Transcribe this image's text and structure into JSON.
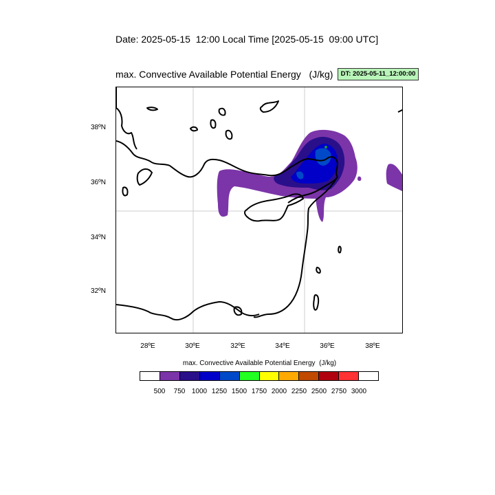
{
  "header": {
    "title": "Date: 2025-05-15  12:00 Local Time [2025-05-15  09:00 UTC]",
    "subtitle": "max. Convective Available Potential Energy   (J/kg)",
    "badge": "DT: 2025-05-11_12:00:00"
  },
  "map": {
    "lat_labels": [
      "38ºN",
      "36ºN",
      "34ºN",
      "32ºN"
    ],
    "lon_labels": [
      "28ºE",
      "30ºE",
      "32ºE",
      "34ºE",
      "36ºE",
      "38ºE"
    ],
    "colors": {
      "land_outline": "#000000",
      "grid": "#cccccc",
      "c500": "#7b35a8",
      "c750": "#2a0f8a",
      "c1000": "#0000c8",
      "c1250": "#0049c8",
      "c1500": "#1a9a3a"
    }
  },
  "colorbar": {
    "title": "max. Convective Available Potential Energy  (J/kg)",
    "colors": [
      "#ffffff",
      "#7b35a8",
      "#2a0f8a",
      "#0000c8",
      "#0049c8",
      "#22ff22",
      "#ffff00",
      "#ffaa00",
      "#c04a00",
      "#b00010",
      "#ff3333",
      "#ffffff"
    ],
    "ticks": [
      "500",
      "750",
      "1000",
      "1250",
      "1500",
      "1750",
      "2000",
      "2250",
      "2500",
      "2750",
      "3000"
    ]
  }
}
